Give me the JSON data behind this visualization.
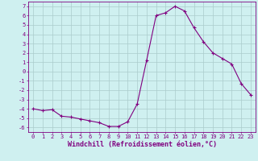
{
  "x": [
    0,
    1,
    2,
    3,
    4,
    5,
    6,
    7,
    8,
    9,
    10,
    11,
    12,
    13,
    14,
    15,
    16,
    17,
    18,
    19,
    20,
    21,
    22,
    23
  ],
  "y": [
    -4.0,
    -4.2,
    -4.1,
    -4.8,
    -4.9,
    -5.1,
    -5.3,
    -5.5,
    -5.9,
    -5.9,
    -5.4,
    -3.5,
    1.2,
    6.0,
    6.3,
    7.0,
    6.5,
    4.7,
    3.2,
    2.0,
    1.4,
    0.8,
    -1.3,
    -2.5
  ],
  "line_color": "#800080",
  "marker": "+",
  "markersize": 3,
  "linewidth": 0.8,
  "xlim": [
    -0.5,
    23.5
  ],
  "ylim": [
    -6.5,
    7.5
  ],
  "yticks": [
    7,
    6,
    5,
    4,
    3,
    2,
    1,
    0,
    -1,
    -2,
    -3,
    -4,
    -5,
    -6
  ],
  "xticks": [
    0,
    1,
    2,
    3,
    4,
    5,
    6,
    7,
    8,
    9,
    10,
    11,
    12,
    13,
    14,
    15,
    16,
    17,
    18,
    19,
    20,
    21,
    22,
    23
  ],
  "xlabel": "Windchill (Refroidissement éolien,°C)",
  "background_color": "#cff0f0",
  "grid_color": "#aacccc",
  "axis_color": "#800080",
  "label_color": "#800080",
  "tick_color": "#800080",
  "tick_fontsize": 5.0,
  "xlabel_fontsize": 6.0
}
